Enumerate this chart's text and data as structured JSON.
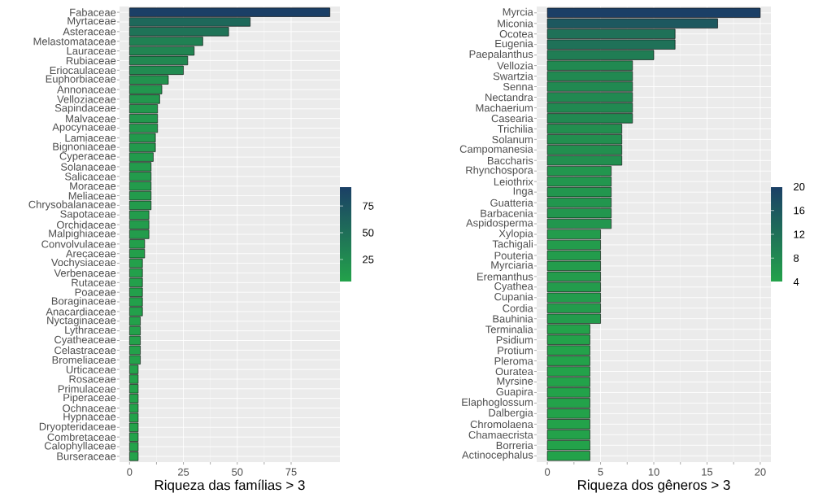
{
  "chart_data": [
    {
      "type": "bar",
      "orientation": "horizontal",
      "xlabel": "Riqueza das famílias > 3",
      "categories": [
        "Fabaceae",
        "Myrtaceae",
        "Asteraceae",
        "Melastomataceae",
        "Lauraceae",
        "Rubiaceae",
        "Eriocaulaceae",
        "Euphorbiaceae",
        "Annonaceae",
        "Velloziaceae",
        "Sapindaceae",
        "Malvaceae",
        "Apocynaceae",
        "Lamiaceae",
        "Bignoniaceae",
        "Cyperaceae",
        "Solanaceae",
        "Salicaceae",
        "Moraceae",
        "Meliaceae",
        "Chrysobalanaceae",
        "Sapotaceae",
        "Orchidaceae",
        "Malpighiaceae",
        "Convolvulaceae",
        "Arecaceae",
        "Vochysiaceae",
        "Verbenaceae",
        "Rutaceae",
        "Poaceae",
        "Boraginaceae",
        "Anacardiaceae",
        "Nyctaginaceae",
        "Lythraceae",
        "Cyatheaceae",
        "Celastraceae",
        "Bromeliaceae",
        "Urticaceae",
        "Rosaceae",
        "Primulaceae",
        "Piperaceae",
        "Ochnaceae",
        "Hypnaceae",
        "Dryopteridaceae",
        "Combretaceae",
        "Calophyllaceae",
        "Burseraceae"
      ],
      "values": [
        93,
        56,
        46,
        34,
        30,
        27,
        25,
        18,
        15,
        14,
        13,
        13,
        13,
        12,
        12,
        11,
        10,
        10,
        10,
        10,
        10,
        9,
        9,
        9,
        7,
        7,
        6,
        6,
        6,
        6,
        6,
        6,
        5,
        5,
        5,
        5,
        5,
        4,
        4,
        4,
        4,
        4,
        4,
        4,
        4,
        4,
        4
      ],
      "colors": [
        "#1b3f66",
        "#1e685a",
        "#1f7357",
        "#208153",
        "#218552",
        "#218851",
        "#218b51",
        "#22924e",
        "#22964e",
        "#22974d",
        "#22984d",
        "#22984d",
        "#22984d",
        "#22994c",
        "#22994c",
        "#229a4c",
        "#239b4c",
        "#239b4c",
        "#239b4c",
        "#239b4c",
        "#239b4c",
        "#239c4c",
        "#239c4c",
        "#239c4c",
        "#239f4b",
        "#239f4b",
        "#23a04b",
        "#23a04b",
        "#23a04b",
        "#23a04b",
        "#23a04b",
        "#23a04b",
        "#23a14a",
        "#23a14a",
        "#23a14a",
        "#23a14a",
        "#23a14a",
        "#23a24a",
        "#23a24a",
        "#23a24a",
        "#23a24a",
        "#23a24a",
        "#23a24a",
        "#23a24a",
        "#23a24a",
        "#23a24a",
        "#23a24a"
      ],
      "xlim": [
        -4.65,
        97.65
      ],
      "xticks": [
        0,
        25,
        50,
        75
      ],
      "grid": true,
      "clim": [
        4,
        93
      ],
      "cticks": [
        25,
        50,
        75
      ]
    },
    {
      "type": "bar",
      "orientation": "horizontal",
      "xlabel": "Riqueza dos gêneros > 3",
      "categories": [
        "Myrcia",
        "Miconia",
        "Ocotea",
        "Eugenia",
        "Paepalanthus",
        "Vellozia",
        "Swartzia",
        "Senna",
        "Nectandra",
        "Machaerium",
        "Casearia",
        "Trichilia",
        "Solanum",
        "Campomanesia",
        "Baccharis",
        "Rhynchospora",
        "Leiothrix",
        "Inga",
        "Guatteria",
        "Barbacenia",
        "Aspidosperma",
        "Xylopia",
        "Tachigali",
        "Pouteria",
        "Myrciaria",
        "Eremanthus",
        "Cyathea",
        "Cupania",
        "Cordia",
        "Bauhinia",
        "Terminalia",
        "Psidium",
        "Protium",
        "Pleroma",
        "Ouratea",
        "Myrsine",
        "Guapira",
        "Elaphoglossum",
        "Dalbergia",
        "Chromolaena",
        "Chamaecrista",
        "Borreria",
        "Actinocephalus"
      ],
      "values": [
        20,
        16,
        12,
        12,
        10,
        8,
        8,
        8,
        8,
        8,
        8,
        7,
        7,
        7,
        7,
        6,
        6,
        6,
        6,
        6,
        6,
        5,
        5,
        5,
        5,
        5,
        5,
        5,
        5,
        5,
        4,
        4,
        4,
        4,
        4,
        4,
        4,
        4,
        4,
        4,
        4,
        4,
        4
      ],
      "colors": [
        "#1b3f66",
        "#1d585f",
        "#1f7158",
        "#1f7158",
        "#207d54",
        "#218951",
        "#218951",
        "#218951",
        "#218951",
        "#218951",
        "#218951",
        "#228f4f",
        "#228f4f",
        "#228f4f",
        "#228f4f",
        "#22964e",
        "#22964e",
        "#22964e",
        "#22964e",
        "#22964e",
        "#22964e",
        "#239c4c",
        "#239c4c",
        "#239c4c",
        "#239c4c",
        "#239c4c",
        "#239c4c",
        "#239c4c",
        "#239c4c",
        "#239c4c",
        "#23a24a",
        "#23a24a",
        "#23a24a",
        "#23a24a",
        "#23a24a",
        "#23a24a",
        "#23a24a",
        "#23a24a",
        "#23a24a",
        "#23a24a",
        "#23a24a",
        "#23a24a",
        "#23a24a"
      ],
      "xlim": [
        -1,
        21
      ],
      "xticks": [
        0,
        5,
        10,
        15,
        20
      ],
      "grid": true,
      "clim": [
        4,
        20
      ],
      "cticks": [
        4,
        8,
        12,
        16,
        20
      ]
    }
  ]
}
